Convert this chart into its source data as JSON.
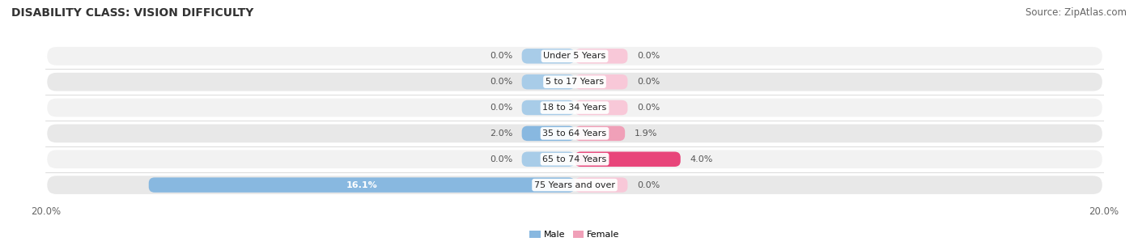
{
  "title": "DISABILITY CLASS: VISION DIFFICULTY",
  "source": "Source: ZipAtlas.com",
  "categories": [
    "Under 5 Years",
    "5 to 17 Years",
    "18 to 34 Years",
    "35 to 64 Years",
    "65 to 74 Years",
    "75 Years and over"
  ],
  "male_values": [
    0.0,
    0.0,
    0.0,
    2.0,
    0.0,
    16.1
  ],
  "female_values": [
    0.0,
    0.0,
    0.0,
    1.9,
    4.0,
    0.0
  ],
  "male_color": "#88b8e0",
  "male_color_stub": "#a8cce8",
  "female_color": "#f0a0b8",
  "female_color_stub": "#f8c8d8",
  "female_color_65": "#e8457a",
  "row_bg_even": "#f2f2f2",
  "row_bg_odd": "#e8e8e8",
  "xlim": 20.0,
  "stub_size": 2.0,
  "title_fontsize": 10,
  "source_fontsize": 8.5,
  "label_fontsize": 8,
  "tick_fontsize": 8.5
}
